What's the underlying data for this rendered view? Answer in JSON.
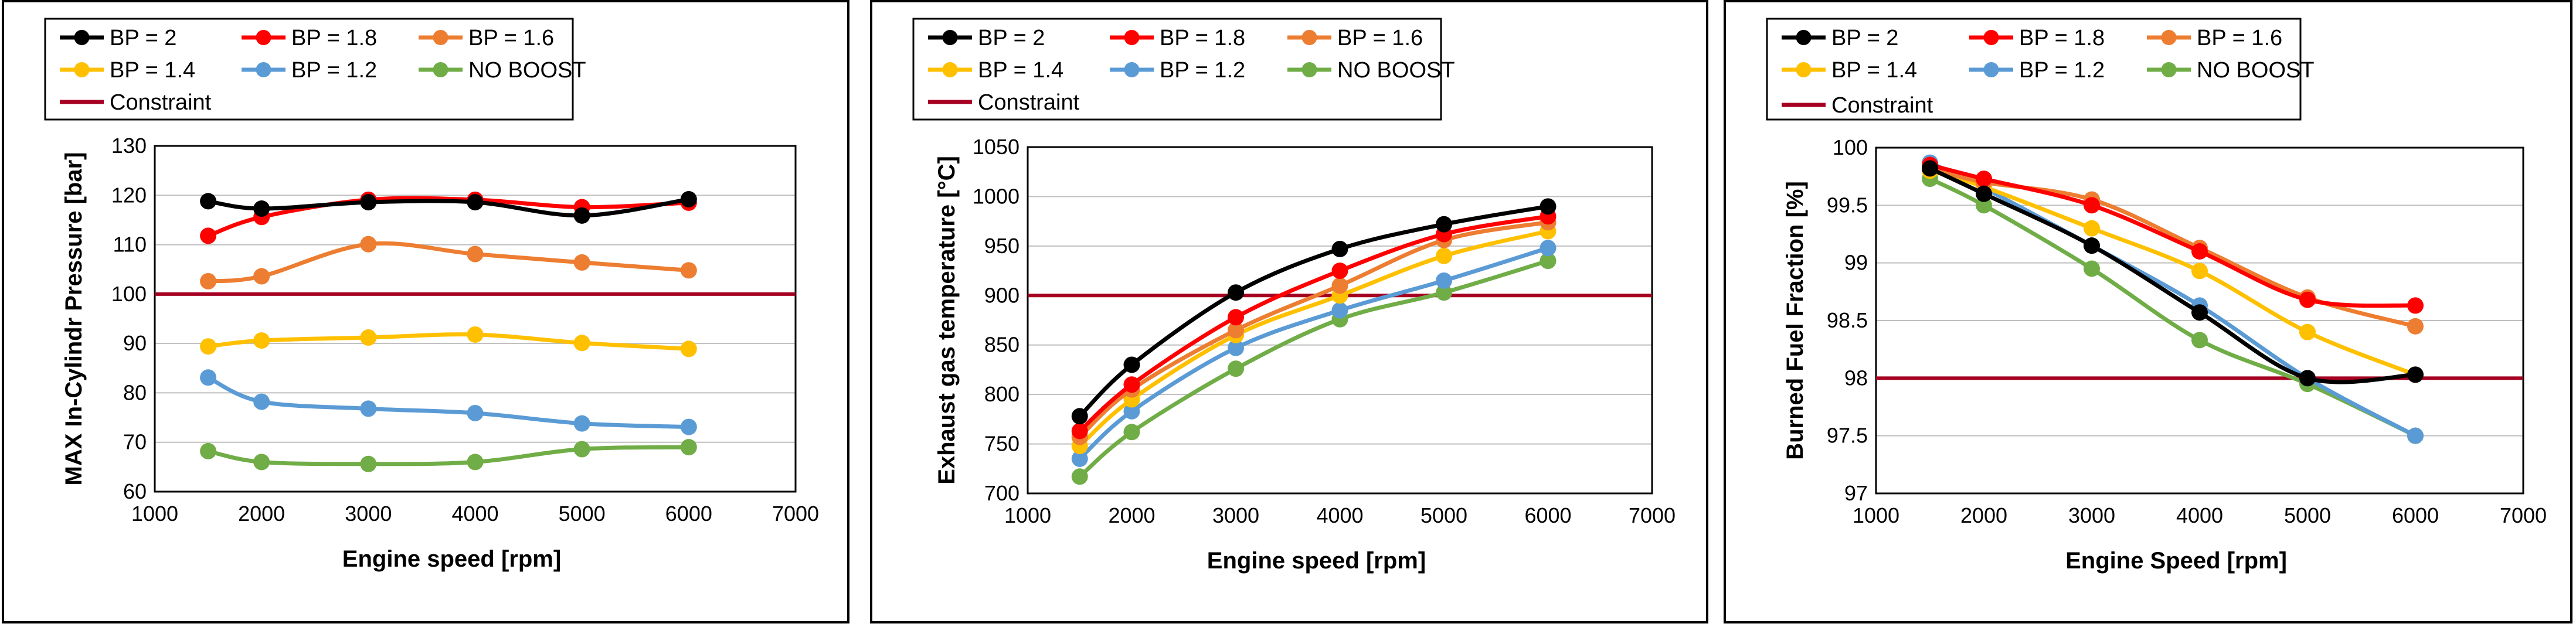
{
  "chart_data": [
    {
      "type": "line",
      "xlabel": "Engine speed [rpm]",
      "ylabel": "MAX In-Cylindr Pressure [bar]",
      "xlim": [
        1000,
        7000
      ],
      "xticks": [
        1000,
        2000,
        3000,
        4000,
        5000,
        6000,
        7000
      ],
      "ylim": [
        60,
        130
      ],
      "yticks": [
        60,
        70,
        80,
        90,
        100,
        110,
        120,
        130
      ],
      "grid": true,
      "x": [
        1500,
        2000,
        3000,
        4000,
        5000,
        6000
      ],
      "series": [
        {
          "name": "BP = 2",
          "color": "#000000",
          "values": [
            118.8,
            117.3,
            118.6,
            118.6,
            115.9,
            119.2
          ]
        },
        {
          "name": "BP = 1.8",
          "color": "#ff0000",
          "values": [
            111.8,
            115.6,
            119.1,
            119.1,
            117.6,
            118.5
          ]
        },
        {
          "name": "BP = 1.6",
          "color": "#ed7d31",
          "values": [
            102.6,
            103.6,
            110.1,
            108.1,
            106.4,
            104.8
          ]
        },
        {
          "name": "BP = 1.4",
          "color": "#ffc000",
          "values": [
            89.4,
            90.6,
            91.2,
            91.8,
            90.1,
            88.9
          ]
        },
        {
          "name": "BP = 1.2",
          "color": "#5b9bd5",
          "values": [
            83.1,
            78.2,
            76.8,
            75.9,
            73.8,
            73.1
          ]
        },
        {
          "name": "NO BOOST",
          "color": "#70ad47",
          "values": [
            68.2,
            66.0,
            65.6,
            66.0,
            68.6,
            69.0
          ]
        }
      ],
      "constraint": {
        "name": "Constraint",
        "color": "#a50021",
        "value": 100
      }
    },
    {
      "type": "line",
      "xlabel": "Engine speed [rpm]",
      "ylabel": "Exhaust gas temperature [°C]",
      "xlim": [
        1000,
        7000
      ],
      "xticks": [
        1000,
        2000,
        3000,
        4000,
        5000,
        6000,
        7000
      ],
      "ylim": [
        700,
        1050
      ],
      "yticks": [
        700,
        750,
        800,
        850,
        900,
        950,
        1000,
        1050
      ],
      "grid": true,
      "x": [
        1500,
        2000,
        3000,
        4000,
        5000,
        6000
      ],
      "series": [
        {
          "name": "BP = 2",
          "color": "#000000",
          "values": [
            778,
            830,
            903,
            947,
            972,
            990
          ]
        },
        {
          "name": "BP = 1.8",
          "color": "#ff0000",
          "values": [
            763,
            810,
            878,
            925,
            962,
            980
          ]
        },
        {
          "name": "BP = 1.6",
          "color": "#ed7d31",
          "values": [
            757,
            805,
            865,
            910,
            956,
            974
          ]
        },
        {
          "name": "BP = 1.4",
          "color": "#ffc000",
          "values": [
            748,
            795,
            860,
            900,
            940,
            965
          ]
        },
        {
          "name": "BP = 1.2",
          "color": "#5b9bd5",
          "values": [
            735,
            783,
            847,
            885,
            915,
            948
          ]
        },
        {
          "name": "NO BOOST",
          "color": "#70ad47",
          "values": [
            717,
            762,
            826,
            876,
            903,
            935
          ]
        }
      ],
      "constraint": {
        "name": "Constraint",
        "color": "#a50021",
        "value": 900
      }
    },
    {
      "type": "line",
      "xlabel": "Engine Speed [rpm]",
      "ylabel": "Burned Fuel Fraction [%]",
      "xlim": [
        1000,
        7000
      ],
      "xticks": [
        1000,
        2000,
        3000,
        4000,
        5000,
        6000,
        7000
      ],
      "ylim": [
        97,
        100
      ],
      "yticks": [
        97,
        97.5,
        98,
        98.5,
        99,
        99.5,
        100
      ],
      "grid": true,
      "x": [
        1500,
        2000,
        3000,
        4000,
        5000,
        6000
      ],
      "series": [
        {
          "name": "BP = 2",
          "color": "#000000",
          "values": [
            99.82,
            99.6,
            99.15,
            98.57,
            98.0,
            98.03
          ]
        },
        {
          "name": "BP = 1.8",
          "color": "#ff0000",
          "values": [
            99.85,
            99.73,
            99.5,
            99.1,
            98.68,
            98.63
          ]
        },
        {
          "name": "BP = 1.6",
          "color": "#ed7d31",
          "values": [
            99.82,
            99.7,
            99.55,
            99.13,
            98.7,
            98.45
          ]
        },
        {
          "name": "BP = 1.4",
          "color": "#ffc000",
          "values": [
            99.8,
            99.66,
            99.3,
            98.93,
            98.4,
            98.03
          ]
        },
        {
          "name": "BP = 1.2",
          "color": "#5b9bd5",
          "values": [
            99.87,
            99.65,
            99.15,
            98.63,
            98.0,
            97.5
          ]
        },
        {
          "name": "NO BOOST",
          "color": "#70ad47",
          "values": [
            99.73,
            99.5,
            98.95,
            98.33,
            97.95,
            97.5
          ]
        }
      ],
      "constraint": {
        "name": "Constraint",
        "color": "#a50021",
        "value": 98
      }
    }
  ]
}
